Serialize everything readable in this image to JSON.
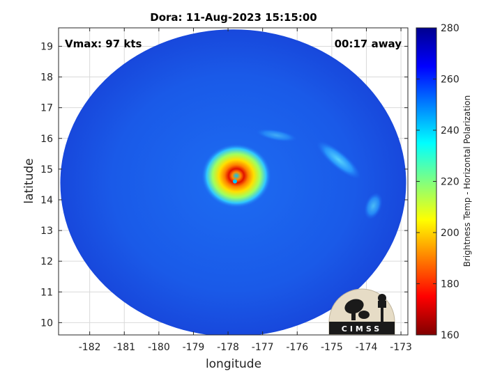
{
  "chart_data": {
    "type": "heatmap",
    "title": "Dora: 11-Aug-2023 15:15:00",
    "xlabel": "longitude",
    "ylabel": "latitude",
    "xlim": [
      -182.9,
      -172.8
    ],
    "ylim": [
      9.6,
      19.6
    ],
    "xticks": [
      -182,
      -181,
      -180,
      -179,
      -178,
      -177,
      -176,
      -175,
      -174,
      -173
    ],
    "yticks": [
      10,
      11,
      12,
      13,
      14,
      15,
      16,
      17,
      18,
      19
    ],
    "grid": true,
    "annotations": {
      "vmax": "Vmax: 97 kts",
      "time_offset": "00:17 away"
    },
    "colorbar": {
      "label": "Brightness Temp - Horizontal Polarization",
      "range": [
        160,
        280
      ],
      "ticks": [
        160,
        180,
        200,
        220,
        240,
        260,
        280
      ],
      "colormap": "jet"
    },
    "storm_center": {
      "lon": -177.8,
      "lat": 14.6
    },
    "eye_min_temp": 185,
    "background_temp": 258,
    "swath": {
      "center_lon": -177.85,
      "center_lat": 14.55,
      "radius_deg": 5.0
    }
  },
  "logo": {
    "text": "CIMSS",
    "bg": "#e6dcc6",
    "fg": "#1a1a1a"
  },
  "colors": {
    "axis": "#262626",
    "grid": "#d9d9d9"
  }
}
